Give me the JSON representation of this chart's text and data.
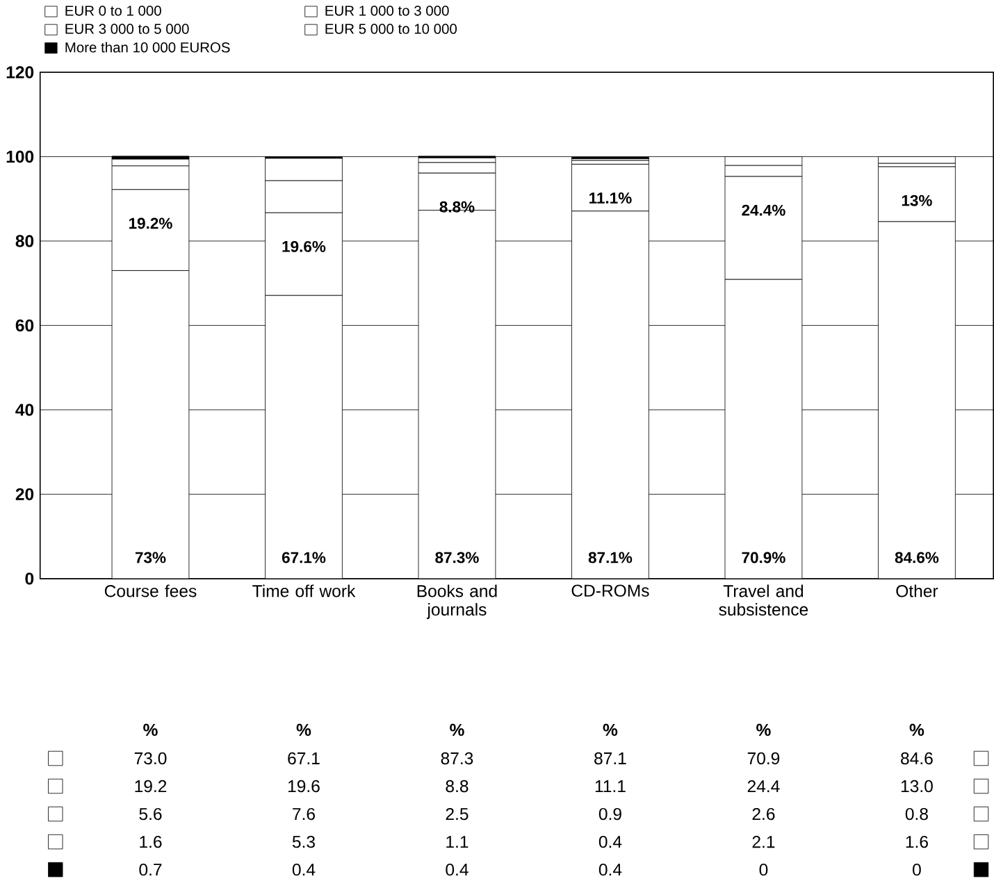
{
  "chart_data": {
    "type": "bar",
    "stacked": true,
    "categories": [
      "Course fees",
      "Time off work",
      "Books and journals",
      "CD-ROMs",
      "Travel and subsistence",
      "Other"
    ],
    "series": [
      {
        "name": "EUR 0 to 1 000",
        "color": "#ffffff",
        "values": [
          73.0,
          67.1,
          87.3,
          87.1,
          70.9,
          84.6
        ],
        "value_labels": [
          "73%",
          "67.1%",
          "87.3%",
          "87.1%",
          "70.9%",
          "84.6%"
        ]
      },
      {
        "name": "EUR 1 000 to 3 000",
        "color": "#ffffff",
        "values": [
          19.2,
          19.6,
          8.8,
          11.1,
          24.4,
          13.0
        ],
        "value_labels": [
          "19.2%",
          "19.6%",
          "8.8%",
          "11.1%",
          "24.4%",
          "13%"
        ]
      },
      {
        "name": "EUR 3 000 to 5 000",
        "color": "#ffffff",
        "values": [
          5.6,
          7.6,
          2.5,
          0.9,
          2.6,
          0.8
        ]
      },
      {
        "name": "EUR 5 000 to 10 000",
        "color": "#ffffff",
        "values": [
          1.6,
          5.3,
          1.1,
          0.4,
          2.1,
          1.6
        ]
      },
      {
        "name": "More than 10 000 EUROS",
        "color": "#000000",
        "values": [
          0.7,
          0.4,
          0.4,
          0.4,
          0,
          0
        ]
      }
    ],
    "ylim": [
      0,
      120
    ],
    "yticks": [
      0,
      20,
      40,
      60,
      80,
      100,
      120
    ],
    "grid": "y",
    "legend": "top left",
    "data_labels": true,
    "annotations": [
      "%",
      "%",
      "%",
      "%",
      "%",
      "%",
      "73.0",
      "67.1",
      "87.3",
      "87.1",
      "70.9",
      "84.6",
      "19.2",
      "19.6",
      "8.8",
      "11.1",
      "24.4",
      "13.0"
    ]
  }
}
